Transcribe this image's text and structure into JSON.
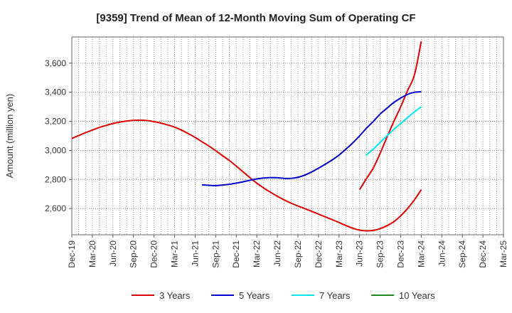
{
  "chart_data": {
    "type": "line",
    "title": "[9359]  Trend of Mean of 12-Month Moving Sum of Operating CF",
    "xlabel": "",
    "ylabel": "Amount (million yen)",
    "ylim": [
      2420,
      3780
    ],
    "yticks": [
      2600,
      2800,
      3000,
      3200,
      3400,
      3600
    ],
    "ytick_labels": [
      "2,600",
      "2,800",
      "3,000",
      "3,200",
      "3,400",
      "3,600"
    ],
    "x_categories": [
      "Dec-19",
      "Mar-20",
      "Jun-20",
      "Sep-20",
      "Dec-20",
      "Mar-21",
      "Jun-21",
      "Sep-21",
      "Dec-21",
      "Mar-22",
      "Jun-22",
      "Sep-22",
      "Dec-22",
      "Mar-23",
      "Jun-23",
      "Sep-23",
      "Dec-23",
      "Mar-24",
      "Jun-24",
      "Sep-24",
      "Dec-24",
      "Mar-25"
    ],
    "series": [
      {
        "name": "3 Years",
        "color": "#dd0000",
        "x": [
          0,
          0.33,
          0.67,
          1,
          1.33,
          1.67,
          2,
          2.33,
          2.67,
          3,
          3.33,
          3.67,
          4,
          4.33,
          4.67,
          5,
          5.33,
          5.67,
          6,
          6.33,
          6.67,
          7,
          7.33,
          7.67,
          8,
          8.33,
          8.67,
          9,
          9.33,
          9.67,
          10,
          10.33,
          10.67,
          11,
          11.33,
          11.67,
          12,
          12.33,
          12.67,
          13,
          13.33,
          13.67,
          14,
          14.33,
          14.67,
          15,
          15.33,
          15.67,
          16,
          16.33,
          16.67,
          17
        ],
        "values": [
          3082,
          3102,
          3122,
          3140,
          3158,
          3172,
          3185,
          3195,
          3202,
          3207,
          3208,
          3205,
          3198,
          3188,
          3175,
          3160,
          3140,
          3115,
          3089,
          3060,
          3030,
          2998,
          2964,
          2930,
          2892,
          2853,
          2812,
          2775,
          2742,
          2712,
          2685,
          2660,
          2637,
          2618,
          2600,
          2581,
          2562,
          2543,
          2524,
          2504,
          2484,
          2465,
          2452,
          2447,
          2450,
          2462,
          2482,
          2510,
          2550,
          2600,
          2660,
          2730
        ]
      },
      {
        "name": "3 Years (cont.)",
        "color": "#dd0000",
        "legend": false,
        "x": [
          14,
          14.33,
          14.67,
          15,
          15.33,
          15.67,
          16,
          16.33,
          16.67,
          17
        ],
        "values": [
          2730,
          2805,
          2880,
          2980,
          3090,
          3200,
          3300,
          3410,
          3520,
          3750
        ]
      },
      {
        "name": "5 Years",
        "color": "#0000cc",
        "x": [
          6.33,
          6.67,
          7,
          7.33,
          7.67,
          8,
          8.33,
          8.67,
          9,
          9.33,
          9.67,
          10,
          10.33,
          10.67,
          11,
          11.33,
          11.67,
          12,
          12.33,
          12.67,
          13,
          13.33,
          13.67,
          14,
          14.33,
          14.67,
          15,
          15.33,
          15.67,
          16,
          16.33,
          16.67,
          17
        ],
        "values": [
          2763,
          2760,
          2758,
          2762,
          2767,
          2775,
          2784,
          2795,
          2804,
          2810,
          2813,
          2812,
          2808,
          2808,
          2815,
          2830,
          2852,
          2878,
          2905,
          2935,
          2968,
          3008,
          3052,
          3100,
          3152,
          3200,
          3250,
          3290,
          3330,
          3360,
          3385,
          3400,
          3403
        ]
      },
      {
        "name": "7 Years",
        "color": "#00e5ee",
        "x": [
          14.3,
          14.67,
          15,
          15.33,
          15.67,
          16,
          16.33,
          16.67,
          17
        ],
        "values": [
          2965,
          3010,
          3055,
          3100,
          3145,
          3185,
          3225,
          3265,
          3300
        ]
      },
      {
        "name": "10 Years",
        "color": "#228822",
        "x": [],
        "values": []
      }
    ],
    "legend_position": "bottom",
    "grid": true
  }
}
